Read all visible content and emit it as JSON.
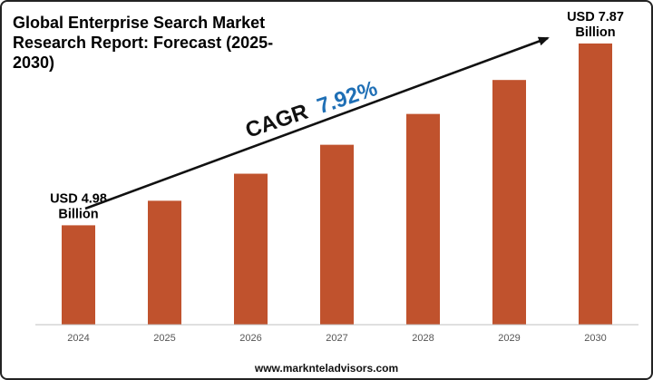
{
  "title_lines": [
    "Global Enterprise Search Market",
    "Research Report: Forecast (2025-",
    "2030)"
  ],
  "cagr": {
    "label": "CAGR",
    "value": "7.92%"
  },
  "colors": {
    "bar": "#C0522D",
    "accent": "#1F6FB5",
    "axis": "#BFBFBF",
    "arrow": "#111111"
  },
  "footer": "www.marknteladvisors.com",
  "chart_data": {
    "type": "bar",
    "categories": [
      "2024",
      "2025",
      "2026",
      "2027",
      "2028",
      "2029",
      "2030"
    ],
    "values": [
      4.98,
      5.37,
      5.8,
      6.26,
      6.75,
      7.29,
      7.87
    ],
    "data_labels": [
      {
        "category": "2024",
        "lines": [
          "USD 4.98",
          "Billion"
        ]
      },
      {
        "category": "2030",
        "lines": [
          "USD 7.87",
          "Billion"
        ]
      }
    ],
    "title": "Global Enterprise Search Market Research Report: Forecast (2025-2030)",
    "xlabel": "",
    "ylabel": "",
    "ylim": [
      3.4,
      8.1
    ],
    "grid": false,
    "annotation": "CAGR 7.92%"
  }
}
